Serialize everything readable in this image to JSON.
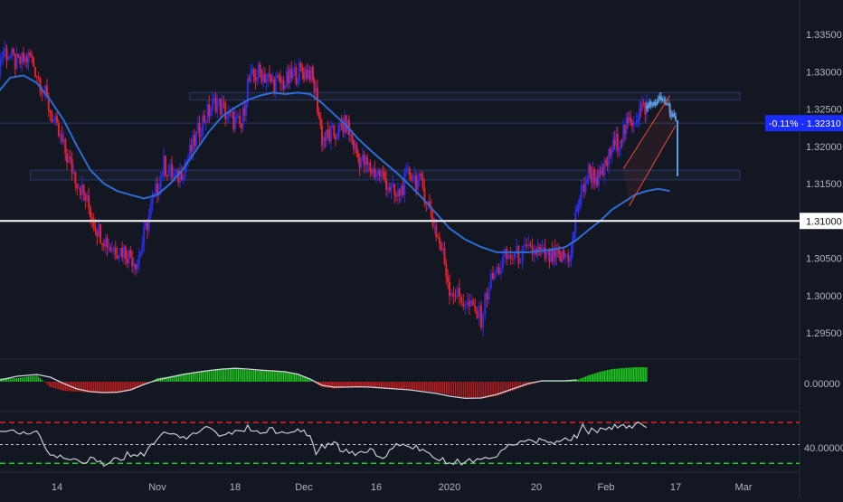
{
  "colors": {
    "background": "#131722",
    "axis_text": "#b2b5be",
    "grid": "#1f2433",
    "separator": "#2a2e39",
    "bull": "#2a2ee8",
    "bear": "#e8202a",
    "ma": "#2f6bd6",
    "support_line": "#ffffff",
    "zone_stroke": "#2b3a66",
    "zone_fill": "#1b2236",
    "channel": "#f04a3a",
    "current_candles": "#5b9be0",
    "price_tag_bg": "#1a2cff",
    "level_tag_bg": "#ffffff",
    "level_tag_text": "#131722",
    "osc_up": "#1fd11f",
    "osc_down": "#d11f1f",
    "osc_line": "#d0d3dc",
    "rsi_line": "#c8cbd4",
    "rsi_upper": "#e8202a",
    "rsi_lower": "#1fd11f",
    "rsi_mid": "#c8cbd4"
  },
  "chart_data": {
    "type": "candlestick",
    "title": "",
    "price_axis": {
      "range": [
        1.2925,
        1.3375
      ],
      "ticks": [
        "1.33500",
        "1.33000",
        "1.32500",
        "1.32000",
        "1.31500",
        "1.31000",
        "1.30500",
        "1.30000",
        "1.29500"
      ],
      "tick_values": [
        1.335,
        1.33,
        1.325,
        1.32,
        1.315,
        1.31,
        1.305,
        1.3,
        1.295
      ]
    },
    "time_axis": {
      "ticks": [
        "14",
        "Nov",
        "18",
        "Dec",
        "16",
        "2020",
        "20",
        "Feb",
        "17",
        "Mar"
      ],
      "tick_index": [
        9,
        24,
        36,
        47,
        59,
        70,
        81,
        93,
        105,
        116
      ],
      "index_range": [
        0,
        125
      ]
    },
    "price_path": [
      [
        0,
        1.33
      ],
      [
        1,
        1.333
      ],
      [
        3,
        1.331
      ],
      [
        5,
        1.332
      ],
      [
        7,
        1.3275
      ],
      [
        9,
        1.322
      ],
      [
        11,
        1.3175
      ],
      [
        13,
        1.3135
      ],
      [
        15,
        1.309
      ],
      [
        17,
        1.3065
      ],
      [
        19,
        1.306
      ],
      [
        21,
        1.3045
      ],
      [
        23,
        1.3115
      ],
      [
        25,
        1.3175
      ],
      [
        27,
        1.3155
      ],
      [
        29,
        1.319
      ],
      [
        31,
        1.3235
      ],
      [
        33,
        1.326
      ],
      [
        35,
        1.324
      ],
      [
        37,
        1.3225
      ],
      [
        38,
        1.3285
      ],
      [
        40,
        1.33
      ],
      [
        42,
        1.3285
      ],
      [
        44,
        1.3285
      ],
      [
        46,
        1.33
      ],
      [
        48,
        1.33
      ],
      [
        49,
        1.327
      ],
      [
        50,
        1.321
      ],
      [
        52,
        1.3215
      ],
      [
        54,
        1.323
      ],
      [
        56,
        1.3185
      ],
      [
        58,
        1.317
      ],
      [
        60,
        1.316
      ],
      [
        62,
        1.313
      ],
      [
        64,
        1.3165
      ],
      [
        66,
        1.3145
      ],
      [
        68,
        1.3085
      ],
      [
        69,
        1.3055
      ],
      [
        70,
        1.301
      ],
      [
        72,
        1.299
      ],
      [
        74,
        1.297
      ],
      [
        75,
        1.3015
      ],
      [
        77,
        1.305
      ],
      [
        79,
        1.3055
      ],
      [
        81,
        1.306
      ],
      [
        83,
        1.305
      ],
      [
        85,
        1.305
      ],
      [
        87,
        1.3055
      ],
      [
        88,
        1.312
      ],
      [
        90,
        1.3165
      ],
      [
        92,
        1.3155
      ],
      [
        94,
        1.3195
      ],
      [
        96,
        1.322
      ],
      [
        98,
        1.324
      ],
      [
        100,
        1.3255
      ]
    ],
    "current_candles_path": [
      [
        100,
        1.3255
      ],
      [
        101,
        1.3255
      ],
      [
        102,
        1.3262
      ],
      [
        103,
        1.3262
      ],
      [
        104,
        1.3248
      ],
      [
        105,
        1.3231
      ]
    ],
    "moving_average": [
      [
        0,
        1.327
      ],
      [
        2,
        1.3292
      ],
      [
        4,
        1.3295
      ],
      [
        6,
        1.3285
      ],
      [
        8,
        1.3262
      ],
      [
        10,
        1.3235
      ],
      [
        12,
        1.32
      ],
      [
        14,
        1.3168
      ],
      [
        16,
        1.315
      ],
      [
        18,
        1.314
      ],
      [
        20,
        1.3135
      ],
      [
        22,
        1.313
      ],
      [
        24,
        1.3135
      ],
      [
        26,
        1.315
      ],
      [
        28,
        1.317
      ],
      [
        30,
        1.3195
      ],
      [
        32,
        1.322
      ],
      [
        34,
        1.324
      ],
      [
        36,
        1.3252
      ],
      [
        38,
        1.3262
      ],
      [
        40,
        1.3268
      ],
      [
        42,
        1.3272
      ],
      [
        44,
        1.327
      ],
      [
        46,
        1.3272
      ],
      [
        48,
        1.327
      ],
      [
        50,
        1.3258
      ],
      [
        52,
        1.3243
      ],
      [
        54,
        1.3228
      ],
      [
        56,
        1.321
      ],
      [
        58,
        1.3195
      ],
      [
        60,
        1.318
      ],
      [
        62,
        1.3165
      ],
      [
        64,
        1.3148
      ],
      [
        66,
        1.313
      ],
      [
        68,
        1.311
      ],
      [
        70,
        1.309
      ],
      [
        72,
        1.3075
      ],
      [
        74,
        1.3065
      ],
      [
        76,
        1.3058
      ],
      [
        78,
        1.3058
      ],
      [
        80,
        1.3058
      ],
      [
        82,
        1.306
      ],
      [
        84,
        1.3062
      ],
      [
        86,
        1.3065
      ],
      [
        88,
        1.3075
      ],
      [
        90,
        1.3088
      ],
      [
        92,
        1.31
      ],
      [
        94,
        1.3115
      ],
      [
        96,
        1.3125
      ],
      [
        98,
        1.3135
      ],
      [
        100,
        1.314
      ],
      [
        102,
        1.3143
      ],
      [
        104,
        1.314
      ]
    ],
    "levels": [
      {
        "value": 1.31,
        "label": "1.31000"
      }
    ],
    "zones": [
      {
        "from_index": 29,
        "to_index": 127,
        "low": 1.3262,
        "high": 1.3272
      },
      {
        "from_index": 5,
        "to_index": 127,
        "low": 1.3155,
        "high": 1.3168
      }
    ],
    "reference_line": {
      "value": 1.3231
    },
    "channel": {
      "upper": [
        [
          96,
          1.317
        ],
        [
          104,
          1.3268
        ]
      ],
      "lower": [
        [
          97,
          1.312
        ],
        [
          105,
          1.3228
        ]
      ]
    },
    "last_price": {
      "change": "-0.11%",
      "value": "1.32310",
      "y_value": 1.3231
    },
    "oscillator": {
      "zero_label": "0.00000",
      "range": [
        -1,
        1
      ],
      "zero_index_ticks": [
        0
      ],
      "histogram_path": [
        [
          0,
          0.18
        ],
        [
          3,
          0.2
        ],
        [
          6,
          0.35
        ],
        [
          8,
          -0.3
        ],
        [
          10,
          -0.5
        ],
        [
          12,
          -0.55
        ],
        [
          14,
          -0.6
        ],
        [
          16,
          -0.65
        ],
        [
          18,
          -0.62
        ],
        [
          20,
          -0.5
        ],
        [
          22,
          -0.2
        ],
        [
          24,
          0.2
        ],
        [
          26,
          0.3
        ],
        [
          28,
          0.45
        ],
        [
          30,
          0.55
        ],
        [
          32,
          0.65
        ],
        [
          34,
          0.7
        ],
        [
          36,
          0.72
        ],
        [
          38,
          0.65
        ],
        [
          40,
          0.6
        ],
        [
          42,
          0.58
        ],
        [
          44,
          0.55
        ],
        [
          46,
          0.45
        ],
        [
          48,
          0.1
        ],
        [
          50,
          -0.3
        ],
        [
          52,
          -0.38
        ],
        [
          54,
          -0.32
        ],
        [
          56,
          -0.28
        ],
        [
          58,
          -0.3
        ],
        [
          60,
          -0.35
        ],
        [
          62,
          -0.38
        ],
        [
          64,
          -0.42
        ],
        [
          66,
          -0.5
        ],
        [
          68,
          -0.6
        ],
        [
          70,
          -0.72
        ],
        [
          72,
          -0.9
        ],
        [
          74,
          -0.95
        ],
        [
          76,
          -0.8
        ],
        [
          78,
          -0.5
        ],
        [
          80,
          -0.2
        ],
        [
          82,
          0.05
        ],
        [
          84,
          0.05
        ],
        [
          86,
          0.05
        ],
        [
          88,
          0.1
        ],
        [
          90,
          0.35
        ],
        [
          92,
          0.55
        ],
        [
          94,
          0.7
        ],
        [
          96,
          0.75
        ],
        [
          98,
          0.8
        ],
        [
          100,
          0.8
        ]
      ],
      "signal_path": [
        [
          0,
          0.05
        ],
        [
          3,
          0.3
        ],
        [
          6,
          0.4
        ],
        [
          8,
          0.25
        ],
        [
          10,
          -0.1
        ],
        [
          12,
          -0.4
        ],
        [
          14,
          -0.55
        ],
        [
          16,
          -0.6
        ],
        [
          18,
          -0.58
        ],
        [
          20,
          -0.45
        ],
        [
          22,
          -0.15
        ],
        [
          24,
          0.1
        ],
        [
          26,
          0.25
        ],
        [
          28,
          0.4
        ],
        [
          30,
          0.52
        ],
        [
          32,
          0.62
        ],
        [
          34,
          0.7
        ],
        [
          36,
          0.74
        ],
        [
          38,
          0.7
        ],
        [
          40,
          0.64
        ],
        [
          42,
          0.6
        ],
        [
          44,
          0.55
        ],
        [
          46,
          0.42
        ],
        [
          48,
          0.15
        ],
        [
          50,
          -0.2
        ],
        [
          52,
          -0.3
        ],
        [
          54,
          -0.3
        ],
        [
          56,
          -0.28
        ],
        [
          58,
          -0.3
        ],
        [
          60,
          -0.35
        ],
        [
          62,
          -0.4
        ],
        [
          64,
          -0.45
        ],
        [
          66,
          -0.55
        ],
        [
          68,
          -0.65
        ],
        [
          70,
          -0.8
        ],
        [
          72,
          -0.92
        ],
        [
          74,
          -0.9
        ],
        [
          76,
          -0.7
        ],
        [
          78,
          -0.4
        ],
        [
          80,
          -0.1
        ],
        [
          82,
          0.05
        ],
        [
          84,
          0.05
        ],
        [
          86,
          0.05
        ],
        [
          88,
          0.1
        ]
      ]
    },
    "rsi": {
      "label": "40.00000",
      "range": [
        25,
        80
      ],
      "upper_band": 70,
      "mid_band": 50,
      "lower_band": 33,
      "path": [
        [
          0,
          58
        ],
        [
          2,
          64
        ],
        [
          4,
          60
        ],
        [
          6,
          62
        ],
        [
          7,
          52
        ],
        [
          8,
          42
        ],
        [
          10,
          38
        ],
        [
          12,
          35
        ],
        [
          14,
          36
        ],
        [
          16,
          33
        ],
        [
          18,
          36
        ],
        [
          20,
          42
        ],
        [
          22,
          40
        ],
        [
          24,
          56
        ],
        [
          26,
          62
        ],
        [
          28,
          55
        ],
        [
          30,
          60
        ],
        [
          32,
          65
        ],
        [
          34,
          58
        ],
        [
          36,
          60
        ],
        [
          37,
          63
        ],
        [
          38,
          66
        ],
        [
          40,
          60
        ],
        [
          42,
          64
        ],
        [
          44,
          58
        ],
        [
          46,
          62
        ],
        [
          48,
          60
        ],
        [
          49,
          42
        ],
        [
          50,
          48
        ],
        [
          52,
          50
        ],
        [
          54,
          44
        ],
        [
          56,
          42
        ],
        [
          58,
          45
        ],
        [
          60,
          40
        ],
        [
          62,
          48
        ],
        [
          64,
          50
        ],
        [
          66,
          44
        ],
        [
          68,
          38
        ],
        [
          70,
          33
        ],
        [
          72,
          35
        ],
        [
          74,
          34
        ],
        [
          76,
          42
        ],
        [
          78,
          50
        ],
        [
          80,
          52
        ],
        [
          82,
          55
        ],
        [
          84,
          52
        ],
        [
          86,
          55
        ],
        [
          88,
          58
        ],
        [
          89,
          68
        ],
        [
          90,
          62
        ],
        [
          92,
          64
        ],
        [
          94,
          66
        ],
        [
          96,
          66
        ],
        [
          98,
          68
        ],
        [
          100,
          68
        ]
      ]
    }
  }
}
